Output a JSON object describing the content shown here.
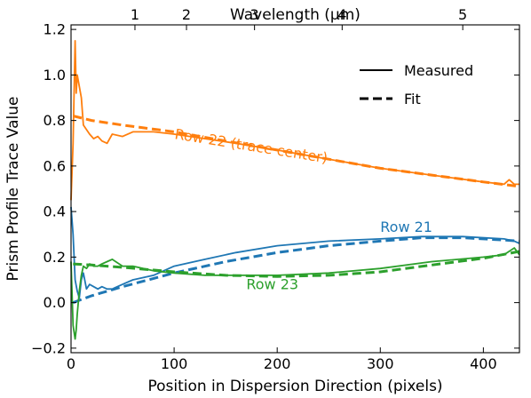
{
  "chart_data": {
    "type": "line",
    "xlabel": "Position in Dispersion Direction (pixels)",
    "ylabel": "Prism Profile Trace Value",
    "top_axis_label": "Wavelength (μm)",
    "xlim": [
      0,
      435
    ],
    "ylim": [
      -0.22,
      1.22
    ],
    "x_ticks": [
      0,
      100,
      200,
      300,
      400
    ],
    "y_ticks": [
      -0.2,
      0.0,
      0.2,
      0.4,
      0.6,
      0.8,
      1.0,
      1.2
    ],
    "y_tick_labels": [
      "−0.2",
      "0.0",
      "0.2",
      "0.4",
      "0.6",
      "0.8",
      "1.0",
      "1.2"
    ],
    "top_ticks": [
      {
        "label": "1",
        "x": 62
      },
      {
        "label": "2",
        "x": 112
      },
      {
        "label": "3",
        "x": 178
      },
      {
        "label": "4",
        "x": 263
      },
      {
        "label": "5",
        "x": 380
      }
    ],
    "legend": {
      "position": "top-right",
      "entries": [
        {
          "label": "Measured",
          "style": "solid"
        },
        {
          "label": "Fit",
          "style": "dashed"
        }
      ]
    },
    "grid": false,
    "series": [
      {
        "name": "Row 22 (trace center)",
        "color": "#ff7f0e",
        "label_at": {
          "x": 100,
          "y": 0.72
        },
        "label_rotation": 9,
        "measured": {
          "x": [
            0,
            2,
            4,
            5,
            6,
            8,
            10,
            12,
            15,
            18,
            22,
            26,
            30,
            35,
            40,
            50,
            60,
            80,
            100,
            130,
            160,
            200,
            250,
            300,
            350,
            400,
            420,
            425,
            430,
            435
          ],
          "y": [
            0.45,
            0.7,
            1.15,
            0.92,
            1.0,
            0.95,
            0.9,
            0.78,
            0.76,
            0.74,
            0.72,
            0.73,
            0.71,
            0.7,
            0.74,
            0.73,
            0.75,
            0.75,
            0.74,
            0.72,
            0.7,
            0.67,
            0.63,
            0.59,
            0.56,
            0.53,
            0.52,
            0.54,
            0.52,
            0.52
          ]
        },
        "fit": {
          "x": [
            2,
            20,
            50,
            100,
            150,
            200,
            250,
            300,
            350,
            400,
            435
          ],
          "y": [
            0.82,
            0.8,
            0.78,
            0.75,
            0.71,
            0.67,
            0.63,
            0.59,
            0.56,
            0.53,
            0.51
          ]
        }
      },
      {
        "name": "Row 21",
        "color": "#1f77b4",
        "label_at": {
          "x": 300,
          "y": 0.31
        },
        "label_rotation": 0,
        "measured": {
          "x": [
            0,
            2,
            4,
            6,
            8,
            10,
            12,
            15,
            18,
            22,
            26,
            30,
            35,
            40,
            50,
            60,
            80,
            100,
            130,
            160,
            200,
            250,
            300,
            340,
            380,
            420,
            430,
            435
          ],
          "y": [
            0.42,
            0.3,
            0.1,
            0.05,
            0.02,
            0.1,
            0.13,
            0.06,
            0.08,
            0.07,
            0.06,
            0.07,
            0.06,
            0.06,
            0.08,
            0.1,
            0.12,
            0.16,
            0.19,
            0.22,
            0.25,
            0.27,
            0.28,
            0.29,
            0.29,
            0.28,
            0.27,
            0.26
          ]
        },
        "fit": {
          "x": [
            2,
            20,
            50,
            100,
            150,
            200,
            250,
            300,
            340,
            380,
            420,
            435
          ],
          "y": [
            0.0,
            0.03,
            0.07,
            0.13,
            0.18,
            0.22,
            0.25,
            0.27,
            0.285,
            0.285,
            0.275,
            0.27
          ]
        }
      },
      {
        "name": "Row 23",
        "color": "#2ca02c",
        "label_at": {
          "x": 170,
          "y": 0.06
        },
        "label_rotation": 0,
        "measured": {
          "x": [
            0,
            2,
            4,
            5,
            6,
            8,
            10,
            12,
            15,
            18,
            22,
            26,
            30,
            35,
            40,
            50,
            60,
            80,
            100,
            130,
            160,
            200,
            250,
            300,
            350,
            400,
            420,
            430,
            435
          ],
          "y": [
            0.18,
            -0.1,
            -0.16,
            -0.12,
            -0.05,
            0.05,
            0.12,
            0.16,
            0.15,
            0.17,
            0.16,
            0.16,
            0.17,
            0.18,
            0.19,
            0.16,
            0.16,
            0.14,
            0.13,
            0.12,
            0.12,
            0.12,
            0.13,
            0.15,
            0.18,
            0.2,
            0.21,
            0.24,
            0.21
          ]
        },
        "fit": {
          "x": [
            2,
            20,
            50,
            100,
            150,
            200,
            250,
            300,
            350,
            400,
            435
          ],
          "y": [
            0.17,
            0.165,
            0.155,
            0.135,
            0.12,
            0.115,
            0.12,
            0.135,
            0.165,
            0.195,
            0.225
          ]
        }
      }
    ]
  }
}
